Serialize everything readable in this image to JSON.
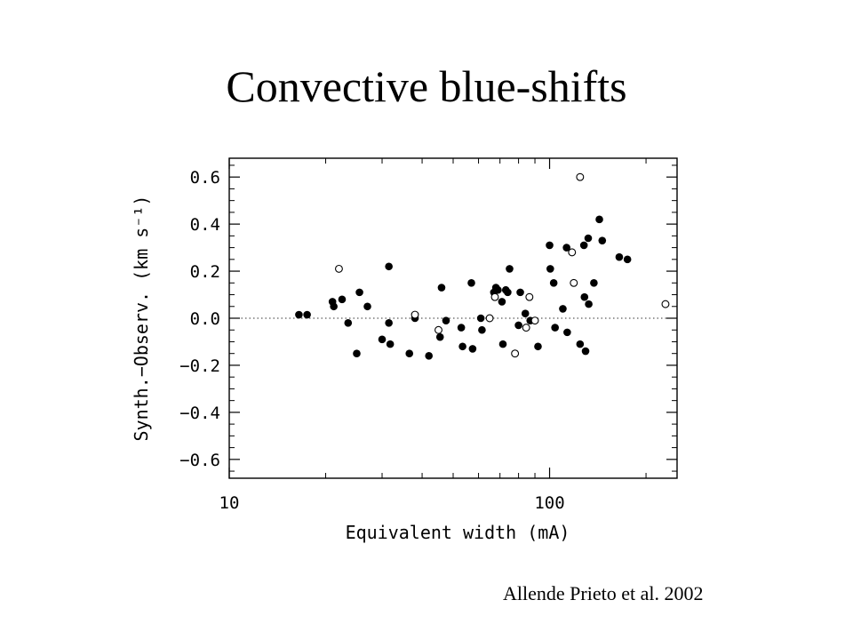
{
  "slide": {
    "title": "Convective blue-shifts",
    "citation": "Allende Prieto et al. 2002"
  },
  "chart_data": {
    "type": "scatter",
    "xlabel": "Equivalent width (mA)",
    "ylabel": "Synth.−Observ. (km s⁻¹)",
    "x_scale": "log",
    "xlim": [
      10,
      250
    ],
    "ylim": [
      -0.68,
      0.68
    ],
    "x_ticks": [
      {
        "value": 10,
        "label": "10"
      },
      {
        "value": 100,
        "label": "100"
      }
    ],
    "y_ticks": [
      {
        "value": 0.6,
        "label": "0.6"
      },
      {
        "value": 0.4,
        "label": "0.4"
      },
      {
        "value": 0.2,
        "label": "0.2"
      },
      {
        "value": 0.0,
        "label": "0.0"
      },
      {
        "value": -0.2,
        "label": "−0.2"
      },
      {
        "value": -0.4,
        "label": "−0.4"
      },
      {
        "value": -0.6,
        "label": "−0.6"
      }
    ],
    "zero_line": true,
    "series": [
      {
        "marker": "filled-circle",
        "color": "#000000",
        "points": [
          [
            16.5,
            0.015
          ],
          [
            17.5,
            0.015
          ],
          [
            21.0,
            0.07
          ],
          [
            21.2,
            0.05
          ],
          [
            22.5,
            0.08
          ],
          [
            23.5,
            -0.02
          ],
          [
            25.0,
            -0.15
          ],
          [
            25.5,
            0.11
          ],
          [
            27.0,
            0.05
          ],
          [
            30.0,
            -0.09
          ],
          [
            31.5,
            0.22
          ],
          [
            31.5,
            -0.02
          ],
          [
            31.8,
            -0.11
          ],
          [
            36.5,
            -0.15
          ],
          [
            38.0,
            0.0
          ],
          [
            42.0,
            -0.16
          ],
          [
            45.5,
            -0.08
          ],
          [
            46.0,
            0.13
          ],
          [
            47.5,
            -0.01
          ],
          [
            53.0,
            -0.04
          ],
          [
            53.5,
            -0.12
          ],
          [
            57.0,
            0.15
          ],
          [
            57.5,
            -0.13
          ],
          [
            61.0,
            0.0
          ],
          [
            61.5,
            -0.05
          ],
          [
            67.0,
            0.11
          ],
          [
            68.0,
            0.13
          ],
          [
            69.0,
            0.12
          ],
          [
            71.0,
            0.07
          ],
          [
            71.5,
            -0.11
          ],
          [
            73.0,
            0.12
          ],
          [
            74.0,
            0.11
          ],
          [
            75.0,
            0.21
          ],
          [
            80.0,
            -0.03
          ],
          [
            81.0,
            0.11
          ],
          [
            84.0,
            0.02
          ],
          [
            87.0,
            -0.01
          ],
          [
            92.0,
            -0.12
          ],
          [
            100.0,
            0.31
          ],
          [
            100.5,
            0.21
          ],
          [
            103.0,
            0.15
          ],
          [
            104.0,
            -0.04
          ],
          [
            110.0,
            0.04
          ],
          [
            113.0,
            0.3
          ],
          [
            113.5,
            -0.06
          ],
          [
            124.5,
            -0.11
          ],
          [
            128.0,
            0.31
          ],
          [
            128.5,
            0.09
          ],
          [
            129.5,
            -0.14
          ],
          [
            132.0,
            0.34
          ],
          [
            132.5,
            0.06
          ],
          [
            137.5,
            0.15
          ],
          [
            143.0,
            0.42
          ],
          [
            146.0,
            0.33
          ],
          [
            165.0,
            0.26
          ],
          [
            175.0,
            0.25
          ]
        ]
      },
      {
        "marker": "open-circle",
        "color": "#000000",
        "points": [
          [
            22.0,
            0.21
          ],
          [
            38.0,
            0.015
          ],
          [
            45.0,
            -0.05
          ],
          [
            65.0,
            0.0
          ],
          [
            67.5,
            0.09
          ],
          [
            78.0,
            -0.15
          ],
          [
            84.5,
            -0.04
          ],
          [
            86.5,
            0.09
          ],
          [
            90.0,
            -0.01
          ],
          [
            117.5,
            0.28
          ],
          [
            119.0,
            0.15
          ],
          [
            124.5,
            0.6
          ],
          [
            230.0,
            0.06
          ]
        ]
      }
    ]
  }
}
